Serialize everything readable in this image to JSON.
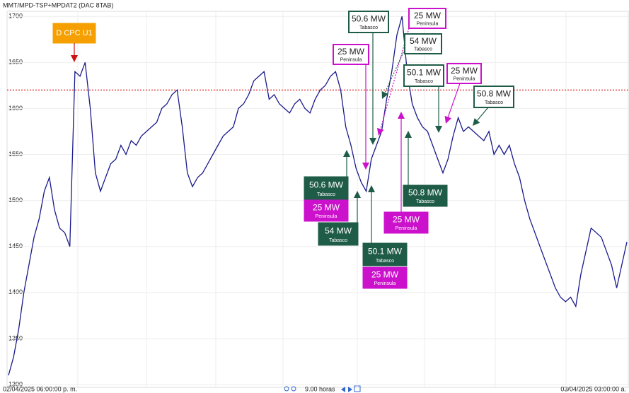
{
  "chart_data": {
    "type": "line",
    "title": "MMT/MPD-TSP+MPDAT2 (DAC 8TAB)",
    "start_label": "02/04/2025 06:00:00 p. m.",
    "end_label": "03/04/2025 03:00:00 a.",
    "span_label": "9.00 horas",
    "ylim": [
      1297,
      1704
    ],
    "yticks": [
      1300,
      1350,
      1400,
      1450,
      1500,
      1550,
      1600,
      1650,
      1700
    ],
    "grid": true,
    "threshold": 1620,
    "threshold_color": "#e02020",
    "series": [
      {
        "name": "MMT/MPD-TSP+MPDAT2",
        "color": "#1a1a8c",
        "values": [
          1310,
          1330,
          1360,
          1400,
          1430,
          1460,
          1480,
          1510,
          1525,
          1490,
          1470,
          1465,
          1450,
          1640,
          1635,
          1650,
          1600,
          1530,
          1510,
          1525,
          1540,
          1545,
          1560,
          1550,
          1565,
          1560,
          1570,
          1575,
          1580,
          1585,
          1600,
          1605,
          1615,
          1620,
          1580,
          1530,
          1515,
          1525,
          1530,
          1540,
          1550,
          1560,
          1570,
          1575,
          1580,
          1600,
          1605,
          1615,
          1630,
          1635,
          1640,
          1610,
          1615,
          1605,
          1600,
          1595,
          1605,
          1610,
          1600,
          1595,
          1610,
          1620,
          1625,
          1635,
          1640,
          1620,
          1580,
          1560,
          1535,
          1520,
          1510,
          1545,
          1560,
          1575,
          1610,
          1640,
          1680,
          1700,
          1640,
          1605,
          1590,
          1580,
          1575,
          1560,
          1545,
          1530,
          1545,
          1570,
          1590,
          1575,
          1580,
          1575,
          1570,
          1565,
          1575,
          1550,
          1560,
          1550,
          1560,
          1540,
          1525,
          1500,
          1480,
          1465,
          1450,
          1435,
          1420,
          1405,
          1395,
          1390,
          1395,
          1385,
          1420,
          1445,
          1470,
          1465,
          1460,
          1445,
          1430,
          1405,
          1430,
          1455
        ]
      }
    ],
    "annotations": [
      {
        "text": "D CPC U1",
        "style": "filled",
        "color": "#f5a000",
        "arrow_color": "#cc1111"
      },
      {
        "text": "50.6 MW",
        "subtext": "Tabasco",
        "style": "filled",
        "color": "#1f5c48"
      },
      {
        "text": "25 MW",
        "subtext": "Peninsula",
        "style": "filled",
        "color": "#cc11cc"
      },
      {
        "text": "54 MW",
        "subtext": "Tabasco",
        "style": "filled",
        "color": "#1f5c48"
      },
      {
        "text": "50.1 MW",
        "subtext": "Tabasco",
        "style": "filled",
        "color": "#1f5c48"
      },
      {
        "text": "25 MW",
        "subtext": "Peninsula",
        "style": "filled",
        "color": "#cc11cc"
      },
      {
        "text": "25 MW",
        "subtext": "Peninsula",
        "style": "filled",
        "color": "#cc11cc"
      },
      {
        "text": "50.8 MW",
        "subtext": "Tabasco",
        "style": "filled",
        "color": "#1f5c48"
      },
      {
        "text": "50.6 MW",
        "subtext": "Tabasco",
        "style": "outline",
        "color": "#1f5c48"
      },
      {
        "text": "25 MW",
        "subtext": "Peninsula",
        "style": "outline",
        "color": "#cc11cc"
      },
      {
        "text": "54 MW",
        "subtext": "Tabasco",
        "style": "outline",
        "color": "#1f5c48"
      },
      {
        "text": "25 MW",
        "subtext": "Peninsula",
        "style": "outline",
        "color": "#cc11cc"
      },
      {
        "text": "50.1 MW",
        "subtext": "Tabasco",
        "style": "outline",
        "color": "#1f5c48"
      },
      {
        "text": "25 MW",
        "subtext": "Peninsula",
        "style": "outline",
        "color": "#cc11cc"
      },
      {
        "text": "50.8 MW",
        "subtext": "Tabasco",
        "style": "outline",
        "color": "#1f5c48"
      }
    ]
  }
}
